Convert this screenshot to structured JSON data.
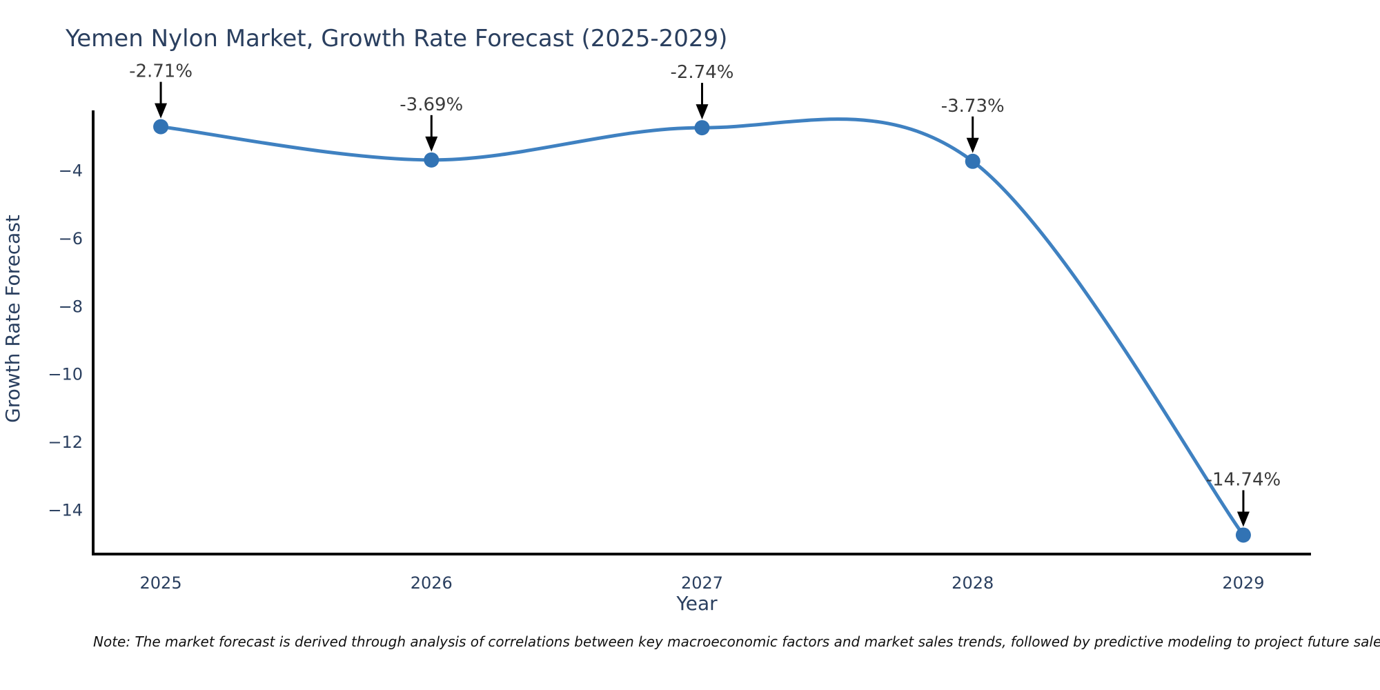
{
  "chart_data": {
    "type": "line",
    "title": "Yemen Nylon Market, Growth Rate Forecast (2025-2029)",
    "xlabel": "Year",
    "ylabel": "Growth Rate Forecast",
    "x": [
      2025,
      2026,
      2027,
      2028,
      2029
    ],
    "y": [
      -2.71,
      -3.69,
      -2.74,
      -3.73,
      -14.74
    ],
    "point_labels": [
      "-2.71%",
      "-3.69%",
      "-2.74%",
      "-3.73%",
      "-14.74%"
    ],
    "x_tick_labels": [
      "2025",
      "2026",
      "2027",
      "2028",
      "2029"
    ],
    "y_ticks": [
      -4,
      -6,
      -8,
      -10,
      -12,
      -14
    ],
    "y_tick_labels": [
      "−4",
      "−6",
      "−8",
      "−10",
      "−12",
      "−14"
    ],
    "xlim": [
      2024.75,
      2029.25
    ],
    "ylim": [
      -15.3,
      -2.23
    ],
    "grid": false,
    "legend_position": "none",
    "smooth": true,
    "line_color": "#3f81c1",
    "marker_color": "#3273b4",
    "axis_color": "#000000",
    "label_color": "#2a3f5f",
    "annotation_color": "#3a3a3a",
    "arrow_color": "#000000"
  },
  "note": "Note: The market forecast is derived through analysis of correlations between key macroeconomic factors and market sales trends, followed by predictive modeling to project future sales."
}
